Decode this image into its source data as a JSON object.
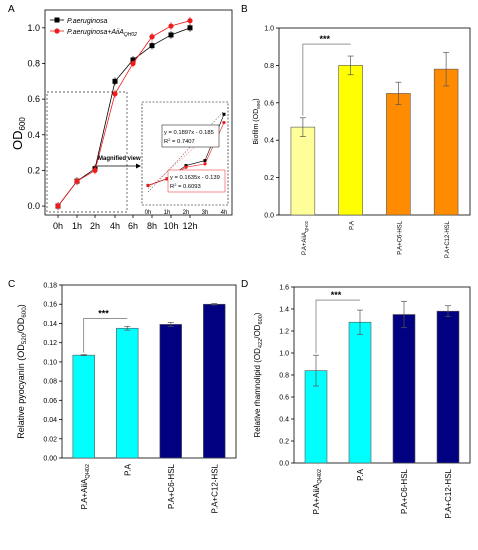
{
  "panels": {
    "A": {
      "letter": "A"
    },
    "B": {
      "letter": "B"
    },
    "C": {
      "letter": "C"
    },
    "D": {
      "letter": "D"
    }
  },
  "chart_data": [
    {
      "panel": "A",
      "type": "line",
      "ylabel": "OD",
      "ylabel_sub": "600",
      "categories": [
        "0h",
        "1h",
        "2h",
        "4h",
        "6h",
        "8h",
        "10h",
        "12h"
      ],
      "ylim": [
        -0.05,
        1.1
      ],
      "yticks": [
        "0.0",
        "0.2",
        "0.4",
        "0.6",
        "0.8",
        "1.0"
      ],
      "legend_position": "top-left",
      "series": [
        {
          "name": "P.aeruginosa",
          "color": "#000000",
          "marker": "square",
          "values": [
            0.0,
            0.14,
            0.21,
            0.7,
            0.82,
            0.9,
            0.96,
            1.0
          ]
        },
        {
          "name": "P.aeruginosa+AiiA",
          "name_sub": "QH02",
          "color": "#ee1c1c",
          "marker": "circle",
          "values": [
            0.0,
            0.14,
            0.2,
            0.63,
            0.8,
            0.95,
            1.01,
            1.04
          ]
        }
      ],
      "annotations": {
        "magnified_label": "Magnified view"
      },
      "inset": {
        "categories": [
          "0h",
          "1h",
          "2h",
          "3h",
          "4h"
        ],
        "series_black": [
          0.07,
          0.11,
          0.19,
          0.22,
          0.5
        ],
        "series_red": [
          0.07,
          0.11,
          0.18,
          0.2,
          0.45
        ],
        "eq_black": "y = 0.1897x - 0.185",
        "r2_black": "R",
        "r2_black_value": " = 0.7407",
        "eq_red": "y = 0.1635x - 0.139",
        "r2_red": "R",
        "r2_red_value": " = 0.6093"
      }
    },
    {
      "panel": "B",
      "type": "bar",
      "ylabel": "Biofilm (OD",
      "ylabel_sub": "590",
      "ylabel_end": ")",
      "categories": [
        "P.A+AiiA",
        "P.A",
        "P.A+C6-HSL",
        "P.A+C12-HSL"
      ],
      "category_subs": [
        "QH02",
        "",
        "",
        ""
      ],
      "values": [
        0.47,
        0.8,
        0.65,
        0.78
      ],
      "errors": [
        0.05,
        0.05,
        0.06,
        0.09
      ],
      "colors": [
        "#ffff99",
        "#ffff00",
        "#ff8c00",
        "#ff8c00"
      ],
      "ylim": [
        0.0,
        1.0
      ],
      "yticks": [
        "0.0",
        "0.2",
        "0.4",
        "0.6",
        "0.8",
        "1.0"
      ],
      "significance": "***"
    },
    {
      "panel": "C",
      "type": "bar",
      "ylabel": "Relative pyocyanin (OD",
      "ylabel_sub1": "520",
      "ylabel_mid": "/OD",
      "ylabel_sub2": "600",
      "ylabel_end": ")",
      "categories": [
        "P.A+AiiA",
        "P.A",
        "P.A+C6-HSL",
        "P.A+C12-HSL"
      ],
      "category_subs": [
        "QH02",
        "",
        "",
        ""
      ],
      "values": [
        0.107,
        0.135,
        0.139,
        0.16
      ],
      "errors": [
        0.0005,
        0.002,
        0.002,
        0.0008
      ],
      "colors": [
        "#00ffff",
        "#00ffff",
        "#000080",
        "#000080"
      ],
      "ylim": [
        0.0,
        0.18
      ],
      "yticks": [
        "0.00",
        "0.02",
        "0.04",
        "0.06",
        "0.08",
        "0.10",
        "0.12",
        "0.14",
        "0.16",
        "0.18"
      ],
      "significance": "***"
    },
    {
      "panel": "D",
      "type": "bar",
      "ylabel": "Relative rhamnolipid (OD",
      "ylabel_sub1": "422",
      "ylabel_mid": "/OD",
      "ylabel_sub2": "600",
      "ylabel_end": ")",
      "categories": [
        "P.A+AiiA",
        "P.A",
        "P.A+C6-HSL",
        "P.A+C12-HSL"
      ],
      "category_subs": [
        "QH02",
        "",
        "",
        ""
      ],
      "values": [
        0.84,
        1.28,
        1.35,
        1.38
      ],
      "errors": [
        0.14,
        0.11,
        0.12,
        0.05
      ],
      "colors": [
        "#00ffff",
        "#00ffff",
        "#000080",
        "#000080"
      ],
      "ylim": [
        0.0,
        1.6
      ],
      "yticks": [
        "0.0",
        "0.2",
        "0.4",
        "0.6",
        "0.8",
        "1.0",
        "1.2",
        "1.4",
        "1.6"
      ],
      "significance": "***"
    }
  ]
}
